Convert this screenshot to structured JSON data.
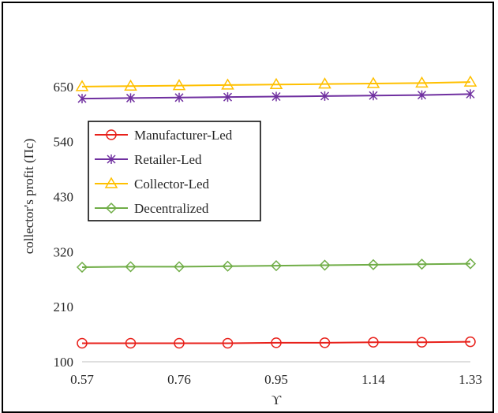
{
  "chart_data": {
    "type": "line",
    "title": "",
    "xlabel": "ϒ",
    "ylabel": "collector's profit (Πc)",
    "x": [
      0.57,
      0.665,
      0.76,
      0.855,
      0.95,
      1.045,
      1.14,
      1.235,
      1.33
    ],
    "x_ticks": [
      "0.57",
      "0.76",
      "0.95",
      "1.14",
      "1.33"
    ],
    "x_tick_values": [
      0.57,
      0.76,
      0.95,
      1.14,
      1.33
    ],
    "ylim": [
      100,
      760
    ],
    "y_ticks": [
      "100",
      "210",
      "320",
      "430",
      "540",
      "650"
    ],
    "y_tick_values": [
      100,
      210,
      320,
      430,
      540,
      650
    ],
    "grid": false,
    "legend_position": "middle-left",
    "series": [
      {
        "name": "Manufacturer-Led",
        "color": "#e8211b",
        "marker": "circle",
        "values": [
          137,
          137,
          137,
          137,
          138,
          138,
          139,
          139,
          140
        ]
      },
      {
        "name": "Retailer-Led",
        "color": "#7030a0",
        "marker": "star",
        "values": [
          626,
          627,
          628,
          629,
          630,
          631,
          632,
          633,
          635
        ]
      },
      {
        "name": "Collector-Led",
        "color": "#ffc000",
        "marker": "triangle",
        "values": [
          650,
          651,
          652,
          653,
          654,
          655,
          656,
          657,
          659
        ]
      },
      {
        "name": "Decentralized",
        "color": "#70ad47",
        "marker": "diamond",
        "values": [
          289,
          290,
          290,
          291,
          292,
          293,
          294,
          295,
          296
        ]
      }
    ]
  }
}
